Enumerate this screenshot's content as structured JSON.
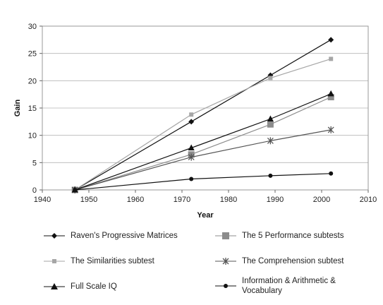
{
  "chart_data": {
    "type": "line",
    "title": "",
    "xlabel": "Year",
    "ylabel": "Gain",
    "xlim": [
      1940,
      2010
    ],
    "ylim": [
      0,
      30
    ],
    "x_ticks": [
      "1940",
      "1950",
      "1960",
      "1970",
      "1980",
      "1990",
      "2000",
      "2010"
    ],
    "y_ticks": [
      "0",
      "5",
      "10",
      "15",
      "20",
      "25",
      "30"
    ],
    "grid": "horizontal",
    "legend_position": "bottom",
    "series": [
      {
        "name": "Raven's Progressive Matrices",
        "marker": "diamond",
        "color": "#111111",
        "x": [
          1947,
          1972,
          1989,
          2002
        ],
        "y": [
          0,
          12.5,
          21,
          27.5
        ]
      },
      {
        "name": "The 5 Performance subtests",
        "marker": "square",
        "color": "#8c8c8c",
        "x": [
          1947,
          1972,
          1989,
          2002
        ],
        "y": [
          0,
          6.5,
          12,
          17
        ]
      },
      {
        "name": "The Similarities subtest",
        "marker": "square-small",
        "color": "#a6a6a6",
        "x": [
          1947,
          1972,
          1989,
          2002
        ],
        "y": [
          0,
          13.8,
          20.5,
          24
        ]
      },
      {
        "name": "The Comprehension subtest",
        "marker": "star",
        "color": "#555555",
        "x": [
          1947,
          1972,
          1989,
          2002
        ],
        "y": [
          0,
          6,
          9,
          11
        ]
      },
      {
        "name": "Full Scale IQ",
        "marker": "triangle",
        "color": "#111111",
        "x": [
          1947,
          1972,
          1989,
          2002
        ],
        "y": [
          0,
          7.7,
          13,
          17.6
        ]
      },
      {
        "name": "Information & Arithmetic & Vocabulary",
        "marker": "circle",
        "color": "#111111",
        "x": [
          1947,
          1972,
          1989,
          2002
        ],
        "y": [
          0,
          2,
          2.6,
          3
        ]
      }
    ],
    "legend": [
      [
        "Raven's Progressive Matrices"
      ],
      [
        "The 5 Performance subtests"
      ],
      [
        "The Similarities subtest"
      ],
      [
        "The Comprehension subtest"
      ],
      [
        "Full Scale IQ"
      ],
      [
        "Information & Arithmetic &",
        "Vocabulary"
      ]
    ]
  }
}
